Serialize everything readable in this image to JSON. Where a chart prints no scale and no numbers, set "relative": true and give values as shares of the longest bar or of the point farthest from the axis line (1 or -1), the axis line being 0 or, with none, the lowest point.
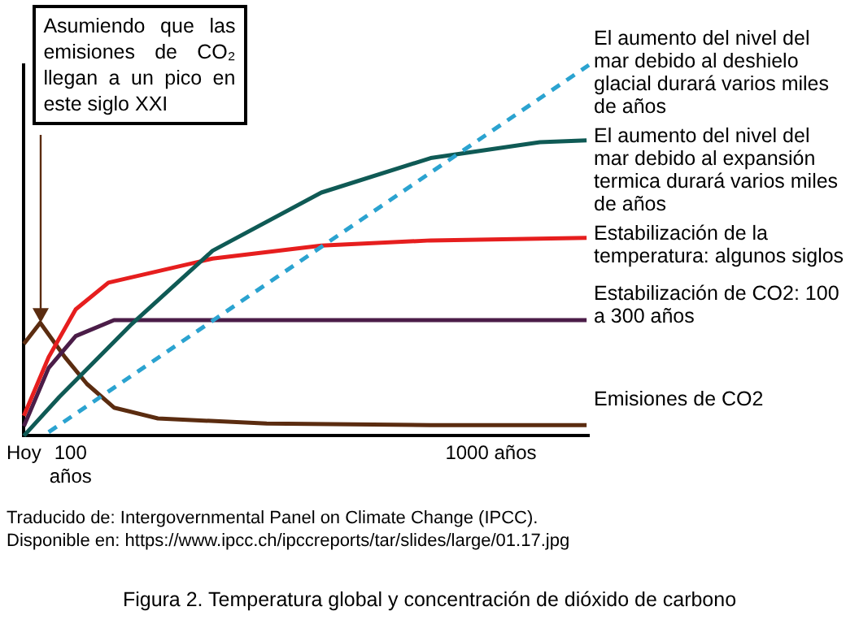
{
  "chart_data": {
    "type": "line",
    "relative": true,
    "title": "Figura 2. Temperatura global y concentración de dióxido de carbono",
    "xlim": [
      0,
      1210
    ],
    "xticks": [
      {
        "value": 0,
        "label": "Hoy"
      },
      {
        "value": 100,
        "label": "100 años"
      },
      {
        "value": 1000,
        "label": "1000 años"
      }
    ],
    "series": [
      {
        "name": "El aumento del nivel del mar debido al deshielo glacial durará varios miles de años",
        "color": "#2ba3d0",
        "line_style": "dashed",
        "x": [
          53,
          1210
        ],
        "values": [
          0.01,
          1.0
        ]
      },
      {
        "name": "El aumento del nivel del mar debido al expansión termica durará varios miles de años",
        "color": "#0f5a55",
        "x": [
          0,
          76,
          228,
          404,
          637,
          871,
          1105,
          1205
        ],
        "values": [
          0,
          0.105,
          0.298,
          0.499,
          0.656,
          0.749,
          0.792,
          0.797
        ]
      },
      {
        "name": "Estabilización de la temperatura: algunos siglos",
        "color": "#e61e1e",
        "x": [
          0,
          53,
          111,
          181,
          404,
          637,
          871,
          1205
        ],
        "values": [
          0.054,
          0.212,
          0.341,
          0.413,
          0.478,
          0.513,
          0.527,
          0.534
        ]
      },
      {
        "name": "Estabilización de CO2: 100 a 300 años",
        "color": "#4b1d48",
        "x": [
          0,
          53,
          111,
          193,
          1205
        ],
        "values": [
          0.026,
          0.183,
          0.269,
          0.312,
          0.312
        ]
      },
      {
        "name": "Emisiones de CO2",
        "color": "#5b2c10",
        "x": [
          0,
          35,
          88,
          135,
          193,
          287,
          520,
          871,
          1205
        ],
        "values": [
          0.248,
          0.305,
          0.212,
          0.14,
          0.076,
          0.047,
          0.033,
          0.029,
          0.029
        ]
      }
    ],
    "marker": "none",
    "legend": false,
    "grid": false,
    "annotations": [
      {
        "text": "Asumiendo que las emisiones de CO₂ llegan a un pico en este siglo XXI",
        "x": 35,
        "y": 0.305
      },
      "Traducido de: Intergovernmental Panel on Climate Change (IPCC).",
      "Disponible en: https://www.ipcc.ch/ipccreports/tar/slides/large/01.17.jpg"
    ]
  }
}
